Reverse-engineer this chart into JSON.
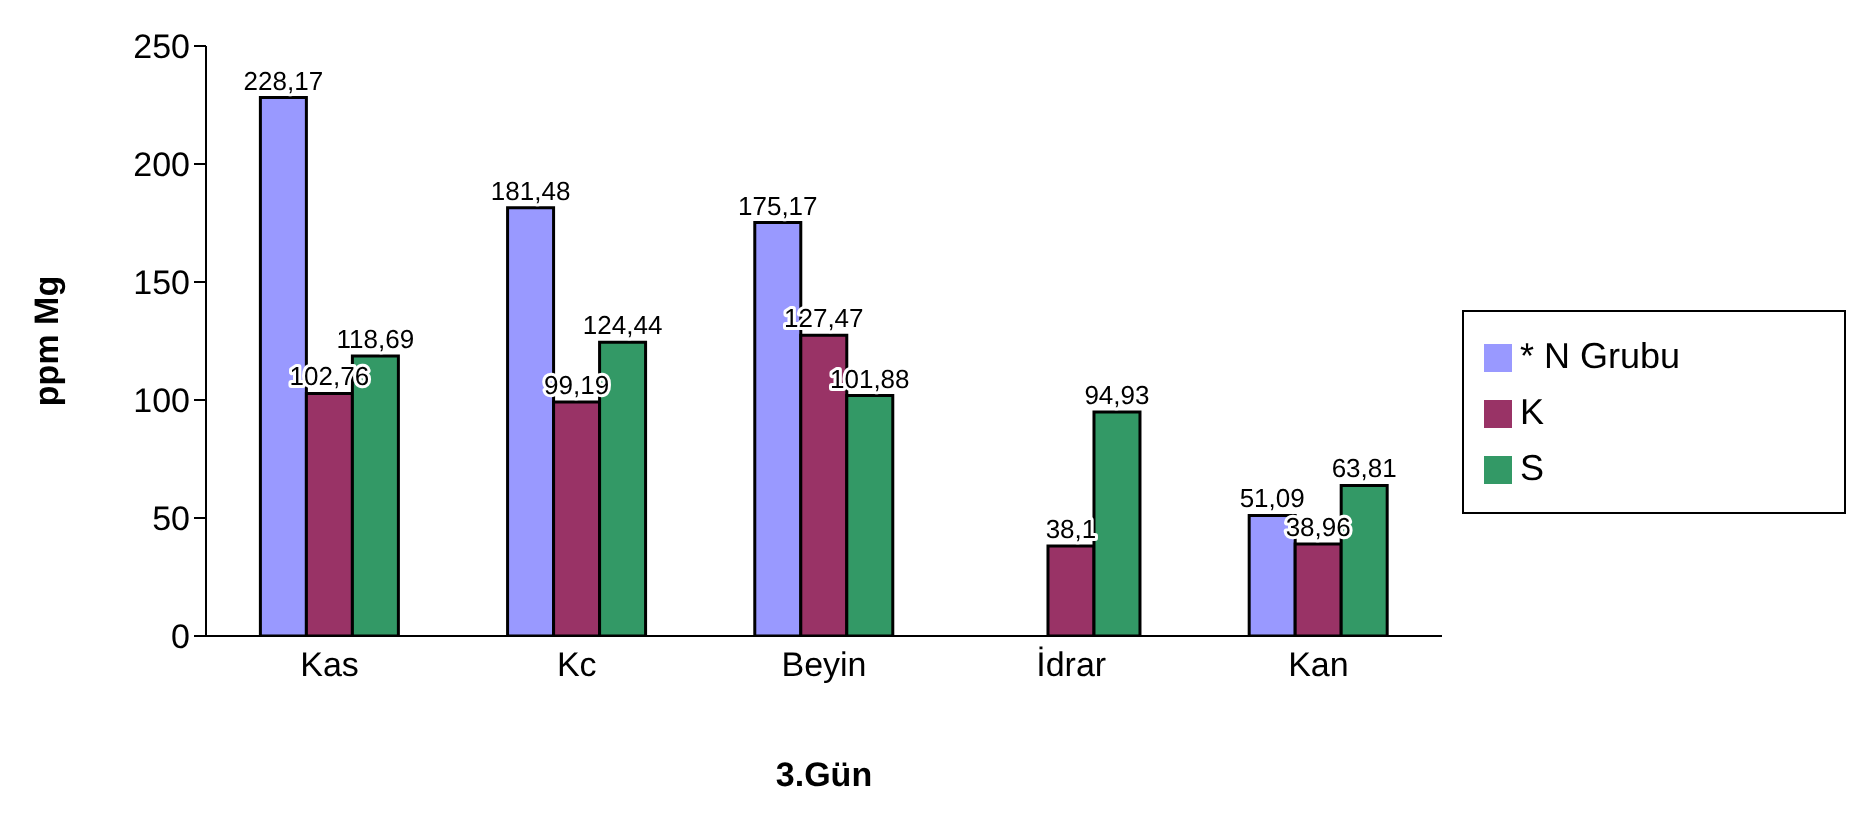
{
  "chart_data": {
    "type": "bar",
    "xlabel": "3.Gün",
    "ylabel": "ppm Mg",
    "categories": [
      "Kas",
      "Kc",
      "Beyin",
      "İdrar",
      "Kan"
    ],
    "series": [
      {
        "name": "* N Grubu",
        "color": "#9999ff",
        "values": [
          228.17,
          181.48,
          175.17,
          null,
          51.09
        ],
        "value_labels": [
          "228,17",
          "181,48",
          "175,17",
          null,
          "51,09"
        ]
      },
      {
        "name": "K",
        "color": "#993366",
        "values": [
          102.76,
          99.19,
          127.47,
          38.1,
          38.96
        ],
        "value_labels": [
          "102,76",
          "99,19",
          "127,47",
          "38,1",
          "38,96"
        ]
      },
      {
        "name": "S",
        "color": "#339966",
        "values": [
          118.69,
          124.44,
          101.88,
          94.93,
          63.81
        ],
        "value_labels": [
          "118,69",
          "124,44",
          "101,88",
          "94,93",
          "63,81"
        ]
      }
    ],
    "ylim": [
      0,
      250
    ],
    "yticks": [
      0,
      50,
      100,
      150,
      200,
      250
    ],
    "grid": false,
    "legend": "right"
  }
}
